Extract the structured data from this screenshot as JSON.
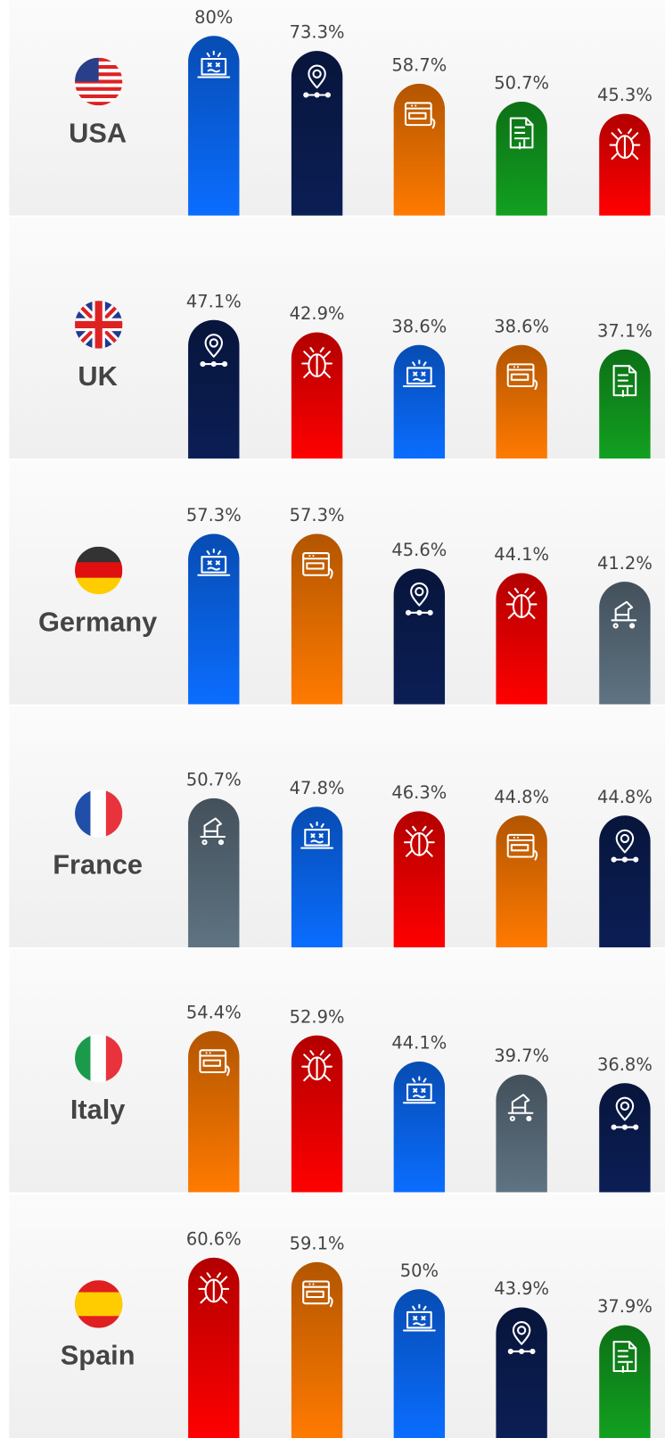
{
  "chart_data": [
    {
      "type": "bar",
      "title": "USA",
      "categories": [
        null,
        null,
        null,
        null,
        null
      ],
      "values": [
        80,
        73.3,
        58.7,
        50.7,
        45.3
      ],
      "value_labels": [
        "80%",
        "73.3%",
        "58.7%",
        "50.7%",
        "45.3%"
      ],
      "colors": [
        "#0a6dff",
        "#0b1e55",
        "#ff7a00",
        "#12a020",
        "#ff0000"
      ],
      "ylim": [
        0,
        96
      ]
    },
    {
      "type": "bar",
      "title": "UK",
      "categories": [
        null,
        null,
        null,
        null,
        null
      ],
      "values": [
        47.1,
        42.9,
        38.6,
        38.6,
        37.1
      ],
      "value_labels": [
        "47.1%",
        "42.9%",
        "38.6%",
        "38.6%",
        "37.1%"
      ],
      "colors": [
        "#0b1e55",
        "#ff0000",
        "#0a6dff",
        "#ff7a00",
        "#12a020"
      ],
      "ylim": [
        0,
        82
      ]
    },
    {
      "type": "bar",
      "title": "Germany",
      "categories": [
        null,
        null,
        null,
        null,
        null
      ],
      "values": [
        57.3,
        57.3,
        45.6,
        44.1,
        41.2
      ],
      "value_labels": [
        "57.3%",
        "57.3%",
        "45.6%",
        "44.1%",
        "41.2%"
      ],
      "colors": [
        "#0a6dff",
        "#ff7a00",
        "#0b1e55",
        "#ff0000",
        "#5f7382"
      ],
      "ylim": [
        0,
        82
      ]
    },
    {
      "type": "bar",
      "title": "France",
      "categories": [
        null,
        null,
        null,
        null,
        null
      ],
      "values": [
        50.7,
        47.8,
        46.3,
        44.8,
        44.8
      ],
      "value_labels": [
        "50.7%",
        "47.8%",
        "46.3%",
        "44.8%",
        "44.8%"
      ],
      "colors": [
        "#5f7382",
        "#0a6dff",
        "#ff0000",
        "#ff7a00",
        "#0b1e55"
      ],
      "ylim": [
        0,
        82
      ]
    },
    {
      "type": "bar",
      "title": "Italy",
      "categories": [
        null,
        null,
        null,
        null,
        null
      ],
      "values": [
        54.4,
        52.9,
        44.1,
        39.7,
        36.8
      ],
      "value_labels": [
        "54.4%",
        "52.9%",
        "44.1%",
        "39.7%",
        "36.8%"
      ],
      "colors": [
        "#ff7a00",
        "#ff0000",
        "#0a6dff",
        "#5f7382",
        "#0b1e55"
      ],
      "ylim": [
        0,
        82
      ]
    },
    {
      "type": "bar",
      "title": "Spain",
      "categories": [
        null,
        null,
        null,
        null,
        null
      ],
      "values": [
        60.6,
        59.1,
        50,
        43.9,
        37.9
      ],
      "value_labels": [
        "60.6%",
        "59.1%",
        "50%",
        "43.9%",
        "37.9%"
      ],
      "colors": [
        "#ff0000",
        "#ff7a00",
        "#0a6dff",
        "#0b1e55",
        "#12a020"
      ],
      "ylim": [
        0,
        82
      ]
    }
  ]
}
